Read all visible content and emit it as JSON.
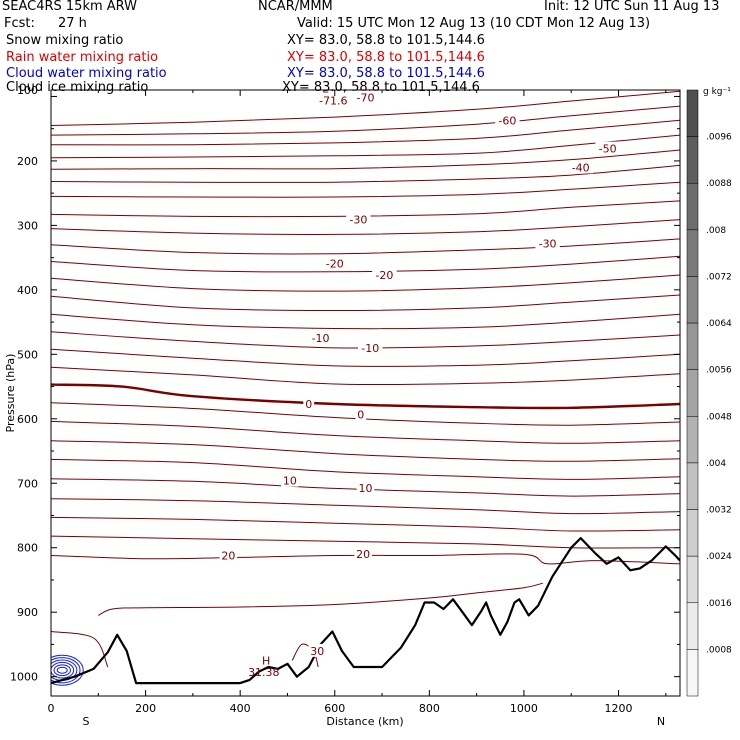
{
  "header": {
    "model": "SEAC4RS 15km ARW",
    "org": "NCAR/MMM",
    "init": "Init: 12 UTC Sun 11 Aug 13",
    "fcst_label": "Fcst:",
    "fcst_value": "27 h",
    "valid": "Valid: 15 UTC Mon 12 Aug 13 (10 CDT Mon 12 Aug 13)"
  },
  "fields": [
    {
      "name": "Snow mixing ratio",
      "xy": "XY=  83.0, 58.8 to 101.5,144.6",
      "color": "#000000"
    },
    {
      "name": "Rain water mixing ratio",
      "xy": "XY=  83.0, 58.8 to 101.5,144.6",
      "color": "#e00000"
    },
    {
      "name": "Cloud water mixing ratio",
      "xy": "XY=  83.0, 58.8 to 101.5,144.6",
      "color": "#0000d0"
    },
    {
      "name": "Cloud ice mixing ratio",
      "xy": "XY=  83.0, 58.8 to 101.5,144.6",
      "color": "#000000"
    }
  ],
  "colorbar": {
    "unit": "g kg⁻¹",
    "labels": [
      ".0096",
      ".0088",
      ".008",
      ".0072",
      ".0064",
      ".0056",
      ".0048",
      ".004",
      ".0032",
      ".0024",
      ".0016",
      ".0008"
    ],
    "colors": [
      "#505050",
      "#5e5e5e",
      "#6c6c6c",
      "#7a7a7a",
      "#888888",
      "#969696",
      "#a4a4a4",
      "#b2b2b2",
      "#c0c0c0",
      "#cecece",
      "#dcdcdc",
      "#eaeaea",
      "#f6f6f6"
    ]
  },
  "chart_data": {
    "type": "cross-section contour",
    "xlabel": "Distance (km)",
    "ylabel": "Pressure (hPa)",
    "xlim": [
      0,
      1330
    ],
    "ylim": [
      1030,
      90
    ],
    "y_axis_top_label": "100",
    "x_ticks": [
      0,
      200,
      400,
      600,
      800,
      1000,
      1200
    ],
    "y_ticks": [
      100,
      200,
      300,
      400,
      500,
      600,
      700,
      800,
      900,
      1000
    ],
    "endpoint_labels": {
      "left": "S",
      "right": "N"
    },
    "temperature_contour_color": "#7a0000",
    "isotherms": [
      {
        "p": [
          [
            0,
            145
          ],
          [
            300,
            140
          ],
          [
            600,
            132
          ],
          [
            900,
            120
          ],
          [
            1100,
            107
          ],
          [
            1330,
            92
          ]
        ]
      },
      {
        "p": [
          [
            0,
            160
          ],
          [
            300,
            158
          ],
          [
            600,
            154
          ],
          [
            900,
            143
          ],
          [
            1100,
            130
          ],
          [
            1330,
            115
          ]
        ]
      },
      {
        "p": [
          [
            0,
            175
          ],
          [
            300,
            175
          ],
          [
            600,
            172
          ],
          [
            900,
            165
          ],
          [
            1100,
            152
          ],
          [
            1330,
            137
          ]
        ]
      },
      {
        "p": [
          [
            0,
            195
          ],
          [
            300,
            194
          ],
          [
            600,
            192
          ],
          [
            900,
            188
          ],
          [
            1100,
            176
          ],
          [
            1330,
            160
          ]
        ]
      },
      {
        "p": [
          [
            0,
            213
          ],
          [
            300,
            212
          ],
          [
            600,
            212
          ],
          [
            900,
            206
          ],
          [
            1100,
            198
          ],
          [
            1330,
            183
          ]
        ]
      },
      {
        "p": [
          [
            0,
            232
          ],
          [
            300,
            233
          ],
          [
            600,
            233
          ],
          [
            900,
            228
          ],
          [
            1100,
            222
          ],
          [
            1330,
            207
          ]
        ]
      },
      {
        "p": [
          [
            0,
            255
          ],
          [
            300,
            256
          ],
          [
            600,
            256
          ],
          [
            900,
            252
          ],
          [
            1100,
            244
          ],
          [
            1330,
            233
          ]
        ]
      },
      {
        "p": [
          [
            0,
            283
          ],
          [
            300,
            286
          ],
          [
            600,
            286
          ],
          [
            900,
            282
          ],
          [
            1100,
            272
          ],
          [
            1330,
            262
          ]
        ]
      },
      {
        "p": [
          [
            0,
            305
          ],
          [
            300,
            312
          ],
          [
            600,
            314
          ],
          [
            900,
            310
          ],
          [
            1100,
            302
          ],
          [
            1330,
            291
          ]
        ]
      },
      {
        "p": [
          [
            0,
            330
          ],
          [
            300,
            342
          ],
          [
            600,
            344
          ],
          [
            900,
            338
          ],
          [
            1100,
            332
          ],
          [
            1330,
            321
          ]
        ]
      },
      {
        "p": [
          [
            0,
            356
          ],
          [
            300,
            370
          ],
          [
            600,
            372
          ],
          [
            900,
            368
          ],
          [
            1100,
            360
          ],
          [
            1330,
            348
          ]
        ]
      },
      {
        "p": [
          [
            0,
            382
          ],
          [
            300,
            398
          ],
          [
            600,
            402
          ],
          [
            900,
            397
          ],
          [
            1100,
            389
          ],
          [
            1330,
            377
          ]
        ]
      },
      {
        "p": [
          [
            0,
            410
          ],
          [
            300,
            428
          ],
          [
            600,
            432
          ],
          [
            900,
            428
          ],
          [
            1100,
            419
          ],
          [
            1330,
            408
          ]
        ]
      },
      {
        "p": [
          [
            0,
            438
          ],
          [
            300,
            454
          ],
          [
            600,
            460
          ],
          [
            900,
            458
          ],
          [
            1100,
            450
          ],
          [
            1330,
            438
          ]
        ]
      },
      {
        "p": [
          [
            0,
            465
          ],
          [
            300,
            480
          ],
          [
            600,
            490
          ],
          [
            900,
            487
          ],
          [
            1100,
            480
          ],
          [
            1330,
            470
          ]
        ]
      },
      {
        "p": [
          [
            0,
            492
          ],
          [
            300,
            506
          ],
          [
            600,
            518
          ],
          [
            900,
            517
          ],
          [
            1100,
            510
          ],
          [
            1330,
            500
          ]
        ]
      },
      {
        "p": [
          [
            0,
            520
          ],
          [
            300,
            532
          ],
          [
            600,
            546
          ],
          [
            900,
            545
          ],
          [
            1100,
            540
          ],
          [
            1330,
            530
          ]
        ]
      },
      {
        "p": [
          [
            0,
            547
          ],
          [
            150,
            550
          ],
          [
            300,
            565
          ],
          [
            600,
            577
          ],
          [
            900,
            582
          ],
          [
            1100,
            583
          ],
          [
            1330,
            577
          ]
        ],
        "bold": true
      },
      {
        "p": [
          [
            0,
            575
          ],
          [
            300,
            584
          ],
          [
            600,
            598
          ],
          [
            900,
            607
          ],
          [
            1100,
            610
          ],
          [
            1330,
            605
          ]
        ]
      },
      {
        "p": [
          [
            0,
            604
          ],
          [
            300,
            612
          ],
          [
            600,
            626
          ],
          [
            900,
            634
          ],
          [
            1100,
            638
          ],
          [
            1330,
            634
          ]
        ]
      },
      {
        "p": [
          [
            0,
            634
          ],
          [
            300,
            640
          ],
          [
            600,
            654
          ],
          [
            900,
            663
          ],
          [
            1100,
            666
          ],
          [
            1330,
            662
          ]
        ]
      },
      {
        "p": [
          [
            0,
            663
          ],
          [
            300,
            668
          ],
          [
            600,
            682
          ],
          [
            900,
            690
          ],
          [
            1100,
            694
          ],
          [
            1330,
            690
          ]
        ]
      },
      {
        "p": [
          [
            0,
            693
          ],
          [
            300,
            697
          ],
          [
            600,
            708
          ],
          [
            900,
            715
          ],
          [
            1100,
            720
          ],
          [
            1330,
            716
          ]
        ]
      },
      {
        "p": [
          [
            0,
            724
          ],
          [
            300,
            727
          ],
          [
            600,
            734
          ],
          [
            900,
            741
          ],
          [
            1100,
            747
          ],
          [
            1330,
            744
          ]
        ]
      },
      {
        "p": [
          [
            0,
            753
          ],
          [
            300,
            756
          ],
          [
            600,
            762
          ],
          [
            900,
            768
          ],
          [
            1100,
            774
          ],
          [
            1330,
            772
          ]
        ]
      },
      {
        "p": [
          [
            0,
            782
          ],
          [
            300,
            786
          ],
          [
            600,
            790
          ],
          [
            900,
            794
          ],
          [
            1100,
            800
          ],
          [
            1330,
            800
          ]
        ]
      },
      {
        "p": [
          [
            0,
            812
          ],
          [
            200,
            817
          ],
          [
            400,
            815
          ],
          [
            600,
            812
          ],
          [
            800,
            812
          ],
          [
            1000,
            810
          ],
          [
            1050,
            825
          ],
          [
            1150,
            820
          ],
          [
            1330,
            825
          ]
        ]
      },
      {
        "p": [
          [
            100,
            905
          ],
          [
            130,
            895
          ],
          [
            200,
            893
          ],
          [
            400,
            892
          ],
          [
            600,
            888
          ],
          [
            800,
            878
          ],
          [
            900,
            870
          ],
          [
            1000,
            862
          ],
          [
            1040,
            855
          ]
        ]
      },
      {
        "p": [
          [
            0,
            930
          ],
          [
            90,
            940
          ],
          [
            120,
            985
          ]
        ]
      },
      {
        "p": [
          [
            510,
            975
          ],
          [
            530,
            950
          ],
          [
            555,
            960
          ],
          [
            565,
            985
          ]
        ]
      }
    ],
    "contour_labels": [
      {
        "x": 597,
        "y": 106,
        "text": "-71.6"
      },
      {
        "x": 665,
        "y": 102,
        "text": "-70"
      },
      {
        "x": 965,
        "y": 137,
        "text": "-60"
      },
      {
        "x": 1177,
        "y": 181,
        "text": "-50"
      },
      {
        "x": 1120,
        "y": 210,
        "text": "-40"
      },
      {
        "x": 650,
        "y": 291,
        "text": "-30"
      },
      {
        "x": 1050,
        "y": 328,
        "text": "-30"
      },
      {
        "x": 600,
        "y": 359,
        "text": "-20"
      },
      {
        "x": 705,
        "y": 377,
        "text": "-20"
      },
      {
        "x": 570,
        "y": 475,
        "text": "-10"
      },
      {
        "x": 675,
        "y": 490,
        "text": "-10"
      },
      {
        "x": 545,
        "y": 577,
        "text": "0"
      },
      {
        "x": 655,
        "y": 593,
        "text": "0"
      },
      {
        "x": 505,
        "y": 696,
        "text": "10"
      },
      {
        "x": 665,
        "y": 707,
        "text": "10"
      },
      {
        "x": 375,
        "y": 812,
        "text": "20"
      },
      {
        "x": 660,
        "y": 810,
        "text": "20"
      },
      {
        "x": 563,
        "y": 960,
        "text": "30"
      }
    ],
    "extrema": [
      {
        "x": 580,
        "y": 88,
        "text": "L"
      },
      {
        "x": 455,
        "y": 975,
        "text": "H"
      },
      {
        "x": 450,
        "y": 993,
        "text": "31.38"
      }
    ],
    "terrain": [
      [
        0,
        1010
      ],
      [
        50,
        1000
      ],
      [
        90,
        988
      ],
      [
        120,
        962
      ],
      [
        140,
        935
      ],
      [
        160,
        960
      ],
      [
        180,
        1010
      ],
      [
        200,
        1010
      ],
      [
        300,
        1010
      ],
      [
        400,
        1010
      ],
      [
        420,
        1005
      ],
      [
        440,
        992
      ],
      [
        460,
        985
      ],
      [
        480,
        988
      ],
      [
        500,
        980
      ],
      [
        520,
        1000
      ],
      [
        545,
        985
      ],
      [
        570,
        950
      ],
      [
        595,
        930
      ],
      [
        615,
        960
      ],
      [
        640,
        985
      ],
      [
        700,
        985
      ],
      [
        740,
        955
      ],
      [
        770,
        920
      ],
      [
        790,
        885
      ],
      [
        810,
        885
      ],
      [
        830,
        895
      ],
      [
        850,
        880
      ],
      [
        870,
        900
      ],
      [
        890,
        920
      ],
      [
        910,
        898
      ],
      [
        920,
        885
      ],
      [
        930,
        905
      ],
      [
        950,
        935
      ],
      [
        965,
        915
      ],
      [
        980,
        885
      ],
      [
        990,
        880
      ],
      [
        1010,
        905
      ],
      [
        1030,
        890
      ],
      [
        1060,
        845
      ],
      [
        1100,
        800
      ],
      [
        1120,
        785
      ],
      [
        1150,
        808
      ],
      [
        1175,
        825
      ],
      [
        1200,
        815
      ],
      [
        1225,
        835
      ],
      [
        1245,
        832
      ],
      [
        1270,
        820
      ],
      [
        1300,
        798
      ],
      [
        1320,
        812
      ],
      [
        1330,
        820
      ]
    ],
    "terrain_label_top_frac": 0,
    "cloud_water_blob": {
      "center_x": 28,
      "center_p": 990,
      "levels": 6
    }
  }
}
